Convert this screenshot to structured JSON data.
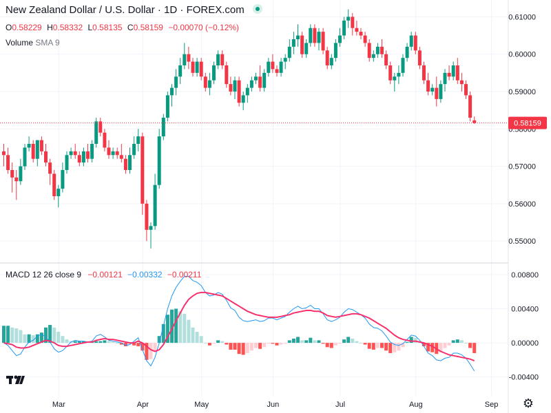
{
  "header": {
    "title": "New Zealand Dollar / U.S. Dollar · 1D · FOREX.com",
    "ohlc": {
      "o_label": "O",
      "o_value": "0.58229",
      "h_label": "H",
      "h_value": "0.58332",
      "l_label": "L",
      "l_value": "0.58135",
      "c_label": "C",
      "c_value": "0.58159",
      "change": "−0.00070 (−0.12%)"
    },
    "volume": {
      "name": "Volume",
      "params": "SMA 9"
    },
    "macd": {
      "name": "MACD",
      "params": "12 26 close 9",
      "value1": "−0.00121",
      "value2": "−0.00332",
      "value3": "−0.00211"
    }
  },
  "colors": {
    "up": "#089981",
    "down": "#f23645",
    "macd_line": "#2196f3",
    "signal_line": "#f7306c",
    "hist_up_strong": "#26a69a",
    "hist_up_weak": "#b2dfdb",
    "hist_down_strong": "#ff5252",
    "hist_down_weak": "#ffcdd2",
    "price_label_bg": "#f23645"
  },
  "current_price_label": "0.58159",
  "chart_data": [
    {
      "type": "candlestick",
      "series_name": "NZDUSD",
      "y_ticks": [
        "0.61000",
        "0.60000",
        "0.59000",
        "0.58000",
        "0.57000",
        "0.56000",
        "0.55000"
      ],
      "ylim": [
        0.5445,
        0.6145
      ],
      "x_ticks": [
        "Mar",
        "Apr",
        "May",
        "Jun",
        "Jul",
        "Aug",
        "Sep"
      ],
      "ohlc": [
        [
          0.574,
          0.576,
          0.57,
          0.573
        ],
        [
          0.573,
          0.575,
          0.568,
          0.569
        ],
        [
          0.569,
          0.571,
          0.563,
          0.567
        ],
        [
          0.567,
          0.569,
          0.561,
          0.566
        ],
        [
          0.566,
          0.572,
          0.565,
          0.57
        ],
        [
          0.57,
          0.576,
          0.569,
          0.575
        ],
        [
          0.575,
          0.578,
          0.574,
          0.576
        ],
        [
          0.576,
          0.577,
          0.571,
          0.572
        ],
        [
          0.572,
          0.577,
          0.57,
          0.577
        ],
        [
          0.577,
          0.578,
          0.573,
          0.574
        ],
        [
          0.574,
          0.576,
          0.57,
          0.571
        ],
        [
          0.571,
          0.572,
          0.565,
          0.568
        ],
        [
          0.568,
          0.569,
          0.561,
          0.562
        ],
        [
          0.562,
          0.565,
          0.559,
          0.564
        ],
        [
          0.564,
          0.571,
          0.563,
          0.569
        ],
        [
          0.569,
          0.574,
          0.568,
          0.573
        ],
        [
          0.573,
          0.575,
          0.572,
          0.574
        ],
        [
          0.574,
          0.576,
          0.572,
          0.573
        ],
        [
          0.573,
          0.574,
          0.57,
          0.571
        ],
        [
          0.571,
          0.575,
          0.57,
          0.574
        ],
        [
          0.574,
          0.576,
          0.571,
          0.572
        ],
        [
          0.572,
          0.577,
          0.571,
          0.576
        ],
        [
          0.576,
          0.583,
          0.575,
          0.582
        ],
        [
          0.582,
          0.583,
          0.578,
          0.579
        ],
        [
          0.579,
          0.58,
          0.574,
          0.575
        ],
        [
          0.575,
          0.577,
          0.572,
          0.573
        ],
        [
          0.573,
          0.575,
          0.572,
          0.574
        ],
        [
          0.574,
          0.575,
          0.572,
          0.573
        ],
        [
          0.573,
          0.576,
          0.571,
          0.572
        ],
        [
          0.572,
          0.573,
          0.568,
          0.569
        ],
        [
          0.569,
          0.575,
          0.568,
          0.573
        ],
        [
          0.573,
          0.578,
          0.572,
          0.576
        ],
        [
          0.576,
          0.58,
          0.574,
          0.578
        ],
        [
          0.578,
          0.579,
          0.557,
          0.56
        ],
        [
          0.56,
          0.561,
          0.55,
          0.553
        ],
        [
          0.553,
          0.555,
          0.548,
          0.554
        ],
        [
          0.554,
          0.568,
          0.553,
          0.565
        ],
        [
          0.565,
          0.58,
          0.564,
          0.578
        ],
        [
          0.578,
          0.584,
          0.577,
          0.583
        ],
        [
          0.583,
          0.59,
          0.582,
          0.589
        ],
        [
          0.589,
          0.592,
          0.586,
          0.591
        ],
        [
          0.591,
          0.596,
          0.589,
          0.594
        ],
        [
          0.594,
          0.599,
          0.592,
          0.597
        ],
        [
          0.597,
          0.603,
          0.596,
          0.6
        ],
        [
          0.6,
          0.602,
          0.596,
          0.598
        ],
        [
          0.598,
          0.599,
          0.594,
          0.595
        ],
        [
          0.595,
          0.599,
          0.594,
          0.598
        ],
        [
          0.598,
          0.599,
          0.593,
          0.594
        ],
        [
          0.594,
          0.595,
          0.59,
          0.591
        ],
        [
          0.591,
          0.595,
          0.589,
          0.593
        ],
        [
          0.593,
          0.598,
          0.592,
          0.597
        ],
        [
          0.597,
          0.601,
          0.596,
          0.6
        ],
        [
          0.6,
          0.601,
          0.596,
          0.597
        ],
        [
          0.597,
          0.598,
          0.591,
          0.592
        ],
        [
          0.592,
          0.594,
          0.589,
          0.59
        ],
        [
          0.59,
          0.594,
          0.588,
          0.593
        ],
        [
          0.593,
          0.594,
          0.586,
          0.587
        ],
        [
          0.587,
          0.59,
          0.585,
          0.589
        ],
        [
          0.589,
          0.592,
          0.587,
          0.591
        ],
        [
          0.591,
          0.594,
          0.59,
          0.593
        ],
        [
          0.593,
          0.595,
          0.592,
          0.594
        ],
        [
          0.594,
          0.597,
          0.59,
          0.591
        ],
        [
          0.591,
          0.596,
          0.59,
          0.595
        ],
        [
          0.595,
          0.599,
          0.594,
          0.598
        ],
        [
          0.598,
          0.6,
          0.595,
          0.596
        ],
        [
          0.596,
          0.597,
          0.594,
          0.595
        ],
        [
          0.595,
          0.599,
          0.594,
          0.598
        ],
        [
          0.598,
          0.6,
          0.596,
          0.599
        ],
        [
          0.599,
          0.604,
          0.598,
          0.602
        ],
        [
          0.602,
          0.606,
          0.6,
          0.604
        ],
        [
          0.604,
          0.608,
          0.602,
          0.605
        ],
        [
          0.605,
          0.606,
          0.599,
          0.6
        ],
        [
          0.6,
          0.604,
          0.599,
          0.603
        ],
        [
          0.603,
          0.608,
          0.602,
          0.607
        ],
        [
          0.607,
          0.608,
          0.602,
          0.603
        ],
        [
          0.603,
          0.607,
          0.601,
          0.606
        ],
        [
          0.606,
          0.607,
          0.6,
          0.601
        ],
        [
          0.601,
          0.602,
          0.596,
          0.597
        ],
        [
          0.597,
          0.6,
          0.596,
          0.599
        ],
        [
          0.599,
          0.604,
          0.598,
          0.603
        ],
        [
          0.603,
          0.607,
          0.602,
          0.605
        ],
        [
          0.605,
          0.61,
          0.604,
          0.609
        ],
        [
          0.609,
          0.612,
          0.607,
          0.61
        ],
        [
          0.61,
          0.611,
          0.605,
          0.607
        ],
        [
          0.607,
          0.609,
          0.605,
          0.606
        ],
        [
          0.606,
          0.607,
          0.604,
          0.605
        ],
        [
          0.605,
          0.606,
          0.602,
          0.603
        ],
        [
          0.603,
          0.604,
          0.598,
          0.599
        ],
        [
          0.599,
          0.601,
          0.598,
          0.6
        ],
        [
          0.6,
          0.603,
          0.599,
          0.602
        ],
        [
          0.602,
          0.604,
          0.599,
          0.6
        ],
        [
          0.6,
          0.601,
          0.596,
          0.597
        ],
        [
          0.597,
          0.598,
          0.592,
          0.593
        ],
        [
          0.593,
          0.595,
          0.59,
          0.594
        ],
        [
          0.594,
          0.597,
          0.592,
          0.595
        ],
        [
          0.595,
          0.6,
          0.594,
          0.599
        ],
        [
          0.599,
          0.603,
          0.598,
          0.602
        ],
        [
          0.602,
          0.606,
          0.601,
          0.605
        ],
        [
          0.605,
          0.606,
          0.6,
          0.601
        ],
        [
          0.601,
          0.602,
          0.596,
          0.597
        ],
        [
          0.597,
          0.598,
          0.592,
          0.593
        ],
        [
          0.593,
          0.595,
          0.589,
          0.59
        ],
        [
          0.59,
          0.592,
          0.589,
          0.591
        ],
        [
          0.591,
          0.594,
          0.586,
          0.588
        ],
        [
          0.588,
          0.593,
          0.587,
          0.592
        ],
        [
          0.592,
          0.596,
          0.59,
          0.595
        ],
        [
          0.595,
          0.597,
          0.593,
          0.594
        ],
        [
          0.594,
          0.598,
          0.593,
          0.597
        ],
        [
          0.597,
          0.599,
          0.592,
          0.593
        ],
        [
          0.593,
          0.595,
          0.59,
          0.592
        ],
        [
          0.592,
          0.593,
          0.588,
          0.589
        ],
        [
          0.589,
          0.59,
          0.582,
          0.583
        ],
        [
          0.58229,
          0.58332,
          0.58135,
          0.58159
        ]
      ]
    },
    {
      "type": "line",
      "series_name": "MACD",
      "y_ticks": [
        "0.00800",
        "0.00400",
        "0.00000",
        "-0.00400"
      ],
      "ylim": [
        -0.0062,
        0.0092
      ],
      "macd": [
        0.0,
        -0.0003,
        -0.0009,
        -0.0015,
        -0.0013,
        -0.0005,
        0.0001,
        0.0003,
        0.0008,
        0.001,
        0.0007,
        0.0001,
        -0.0007,
        -0.0011,
        -0.0009,
        -0.0004,
        0.0001,
        0.0003,
        0.0002,
        0.0002,
        0.0001,
        0.0002,
        0.0008,
        0.001,
        0.0007,
        0.0003,
        0.0002,
        0.0001,
        0.0,
        -0.0003,
        -0.0002,
        0.0002,
        0.0006,
        -0.0008,
        -0.0021,
        -0.0027,
        -0.0017,
        0.0,
        0.002,
        0.004,
        0.0055,
        0.0065,
        0.0072,
        0.0078,
        0.0078,
        0.0073,
        0.0071,
        0.0067,
        0.0059,
        0.0055,
        0.0056,
        0.0059,
        0.0057,
        0.005,
        0.0041,
        0.0038,
        0.003,
        0.0026,
        0.0025,
        0.0026,
        0.0027,
        0.0025,
        0.0026,
        0.0029,
        0.0029,
        0.0027,
        0.0029,
        0.0031,
        0.0036,
        0.004,
        0.0043,
        0.004,
        0.0041,
        0.0044,
        0.004,
        0.004,
        0.0034,
        0.0027,
        0.0025,
        0.0027,
        0.003,
        0.0036,
        0.004,
        0.0039,
        0.0036,
        0.0033,
        0.0029,
        0.0022,
        0.0018,
        0.0017,
        0.0014,
        0.0008,
        0.0001,
        -0.0002,
        -0.0003,
        -0.0001,
        0.0004,
        0.0009,
        0.0008,
        0.0003,
        -0.0004,
        -0.0012,
        -0.0015,
        -0.002,
        -0.0021,
        -0.0018,
        -0.0017,
        -0.0012,
        -0.0012,
        -0.0014,
        -0.0018,
        -0.0025,
        -0.0033
      ],
      "signal": [
        0.0,
        -0.0001,
        -0.0002,
        -0.0005,
        -0.0006,
        -0.0006,
        -0.0005,
        -0.0003,
        -0.0001,
        0.0001,
        0.0003,
        0.0002,
        0.0,
        -0.0003,
        -0.0004,
        -0.0004,
        -0.0003,
        -0.0002,
        -0.0001,
        0.0,
        0.0001,
        0.0001,
        0.0003,
        0.0004,
        0.0005,
        0.0004,
        0.0004,
        0.0003,
        0.0002,
        0.0001,
        0.0,
        0.0,
        0.0002,
        0.0,
        -0.0004,
        -0.0008,
        -0.001,
        -0.0008,
        -0.0002,
        0.0007,
        0.0016,
        0.0026,
        0.0035,
        0.0044,
        0.0051,
        0.0055,
        0.0058,
        0.0059,
        0.0059,
        0.0058,
        0.0057,
        0.0056,
        0.0055,
        0.0052,
        0.0049,
        0.0046,
        0.0043,
        0.004,
        0.0037,
        0.0035,
        0.0033,
        0.0032,
        0.0031,
        0.003,
        0.003,
        0.003,
        0.0031,
        0.0032,
        0.0033,
        0.0035,
        0.0036,
        0.0037,
        0.0038,
        0.0038,
        0.0037,
        0.0037,
        0.0035,
        0.0032,
        0.0031,
        0.003,
        0.0031,
        0.0032,
        0.0033,
        0.0034,
        0.0034,
        0.0033,
        0.0031,
        0.0029,
        0.0026,
        0.0023,
        0.002,
        0.0017,
        0.0013,
        0.0009,
        0.0006,
        0.0004,
        0.0003,
        0.0002,
        0.0002,
        0.0001,
        0.0,
        -0.0002,
        -0.0004,
        -0.0007,
        -0.001,
        -0.0012,
        -0.0014,
        -0.0015,
        -0.0016,
        -0.0017,
        -0.0018,
        -0.0019,
        -0.0021
      ],
      "histogram": [
        0.002,
        0.002,
        0.0018,
        0.0017,
        0.0015,
        0.001,
        0.001,
        0.0009,
        0.001,
        0.0012,
        0.0018,
        0.0021,
        0.0018,
        0.0013,
        0.0008,
        0.0004,
        0.0002,
        0.0002,
        0.0002,
        0.0002,
        0.0001,
        0.0001,
        0.0002,
        0.0002,
        0.0003,
        0.0002,
        0.0001,
        0.0,
        -0.0002,
        -0.0004,
        -0.0002,
        -0.0003,
        -0.0004,
        -0.0009,
        -0.002,
        -0.0019,
        -0.001,
        0.0008,
        0.0022,
        0.0033,
        0.0039,
        0.004,
        0.0037,
        0.0034,
        0.0027,
        0.0018,
        0.0013,
        0.0008,
        0.0,
        -0.0003,
        -0.0001,
        0.0003,
        0.0002,
        -0.0002,
        -0.0008,
        -0.0008,
        -0.0013,
        -0.0014,
        -0.0012,
        -0.0009,
        -0.0006,
        -0.0007,
        -0.0005,
        -0.0001,
        -0.0001,
        -0.0003,
        -0.0002,
        -0.0001,
        0.0003,
        0.0005,
        0.0007,
        0.0003,
        0.0003,
        0.0006,
        0.0003,
        0.0003,
        -0.0001,
        -0.0005,
        -0.0006,
        -0.0003,
        -0.0001,
        0.0004,
        0.0007,
        0.0005,
        0.0002,
        0.0,
        -0.0002,
        -0.0007,
        -0.0008,
        -0.0006,
        -0.0006,
        -0.0009,
        -0.0012,
        -0.0011,
        -0.0009,
        -0.0005,
        0.0001,
        0.0007,
        0.0006,
        0.0002,
        -0.0004,
        -0.001,
        -0.0011,
        -0.0013,
        -0.0011,
        -0.0006,
        -0.0003,
        0.0003,
        0.0004,
        0.0003,
        0.0,
        -0.0006,
        -0.0012
      ]
    }
  ]
}
